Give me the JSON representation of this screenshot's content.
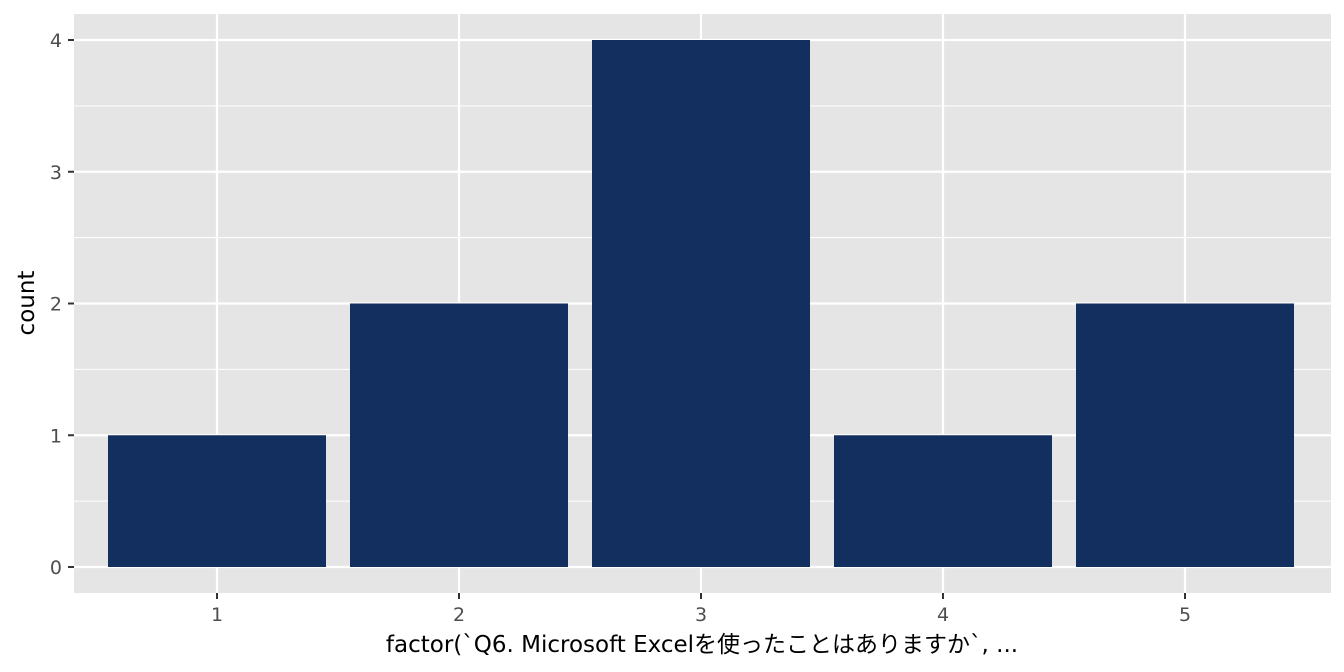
{
  "chart_data": {
    "type": "bar",
    "categories": [
      "1",
      "2",
      "3",
      "4",
      "5"
    ],
    "values": [
      1,
      2,
      4,
      1,
      2
    ],
    "title": "",
    "xlabel": "factor(`Q6. Microsoft Excelを使ったことはありますか`, ...",
    "ylabel": "count",
    "ylim": [
      0,
      4
    ],
    "yticks": [
      0,
      1,
      2,
      3,
      4
    ],
    "grid": true,
    "legend": "none",
    "colors": {
      "bar": "#132f5f",
      "panel_background": "#e5e5e5",
      "grid_line": "#ffffff",
      "tick_label": "#4d4d4d"
    }
  }
}
